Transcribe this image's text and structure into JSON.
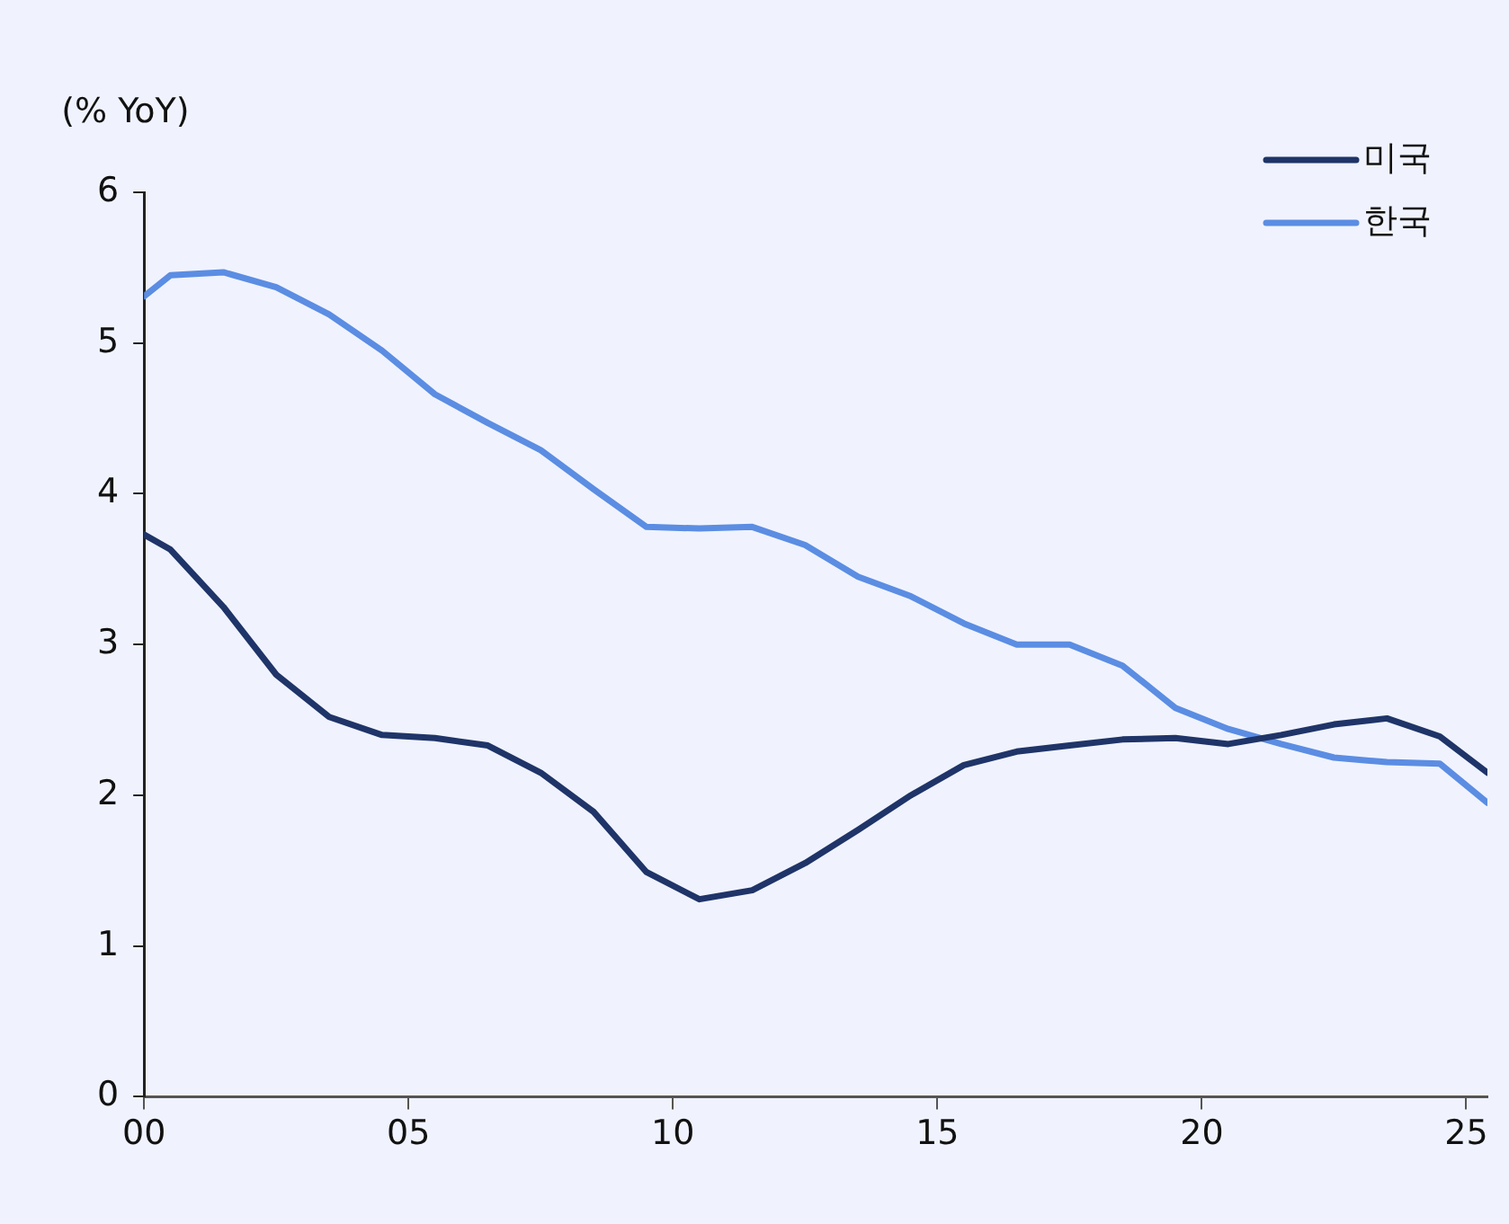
{
  "chart_data": {
    "type": "line",
    "ylabel": "(% YoY)",
    "x": [
      0,
      0.5,
      1.5,
      2.5,
      3.5,
      4.5,
      5.5,
      6.5,
      7.5,
      8.5,
      9.5,
      10.5,
      11.5,
      12.5,
      13.5,
      14.5,
      15.5,
      16.5,
      17.5,
      18.5,
      19.5,
      20.5,
      21.5,
      22.5,
      23.5,
      24.5,
      25.4
    ],
    "series": [
      {
        "name": "미국",
        "color": "#1f3468",
        "values": [
          3.73,
          3.63,
          3.25,
          2.8,
          2.52,
          2.4,
          2.38,
          2.33,
          2.15,
          1.89,
          1.49,
          1.31,
          1.37,
          1.55,
          1.77,
          2.0,
          2.2,
          2.29,
          2.33,
          2.37,
          2.38,
          2.34,
          2.4,
          2.47,
          2.51,
          2.39,
          2.15
        ]
      },
      {
        "name": "한국",
        "color": "#5b8de3",
        "values": [
          5.31,
          5.45,
          5.47,
          5.37,
          5.19,
          4.95,
          4.66,
          4.47,
          4.29,
          4.03,
          3.78,
          3.77,
          3.78,
          3.66,
          3.45,
          3.32,
          3.14,
          3.0,
          3.0,
          2.86,
          2.58,
          2.44,
          2.34,
          2.25,
          2.22,
          2.21,
          1.95
        ]
      }
    ],
    "xlim": [
      0,
      25.4
    ],
    "xticks": [
      {
        "value": 0,
        "label": "00"
      },
      {
        "value": 5,
        "label": "05"
      },
      {
        "value": 10,
        "label": "10"
      },
      {
        "value": 15,
        "label": "15"
      },
      {
        "value": 20,
        "label": "20"
      },
      {
        "value": 25,
        "label": "25"
      }
    ],
    "ylim": [
      0,
      6
    ],
    "yticks": [
      0,
      1,
      2,
      3,
      4,
      5,
      6
    ],
    "grid": false,
    "legend": "top right",
    "marker": "none",
    "line_style": "solid"
  }
}
